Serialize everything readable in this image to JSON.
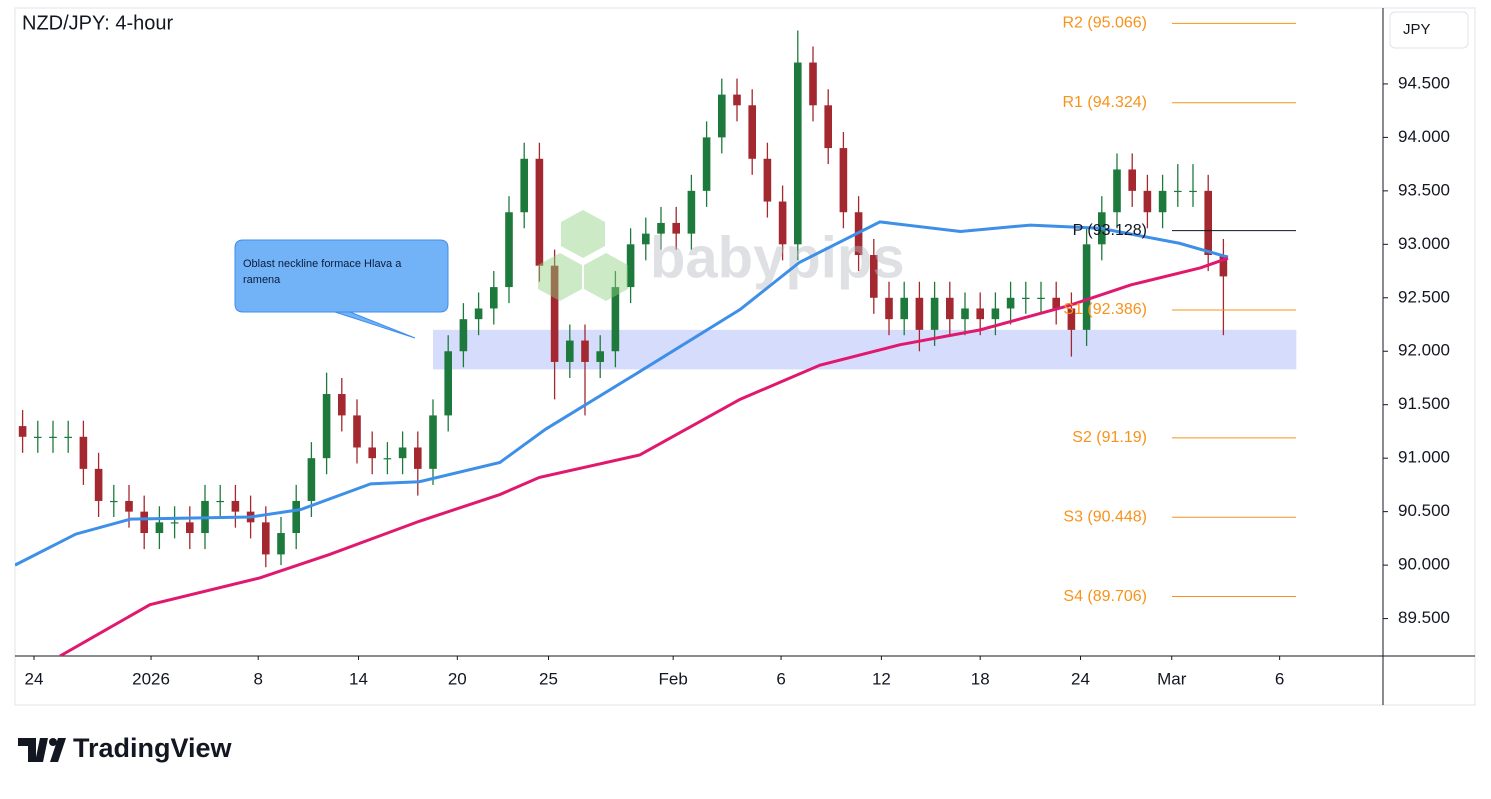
{
  "chart_data": {
    "type": "candlestick",
    "title": "NZD/JPY: 4-hour",
    "y_axis_label": "JPY",
    "watermark": "babypips",
    "footer": "TradingView",
    "annotation": "Oblast neckline formace Hlava a ramena",
    "xlim": [
      0,
      90
    ],
    "ylim": [
      89.15,
      95.21
    ],
    "xticks": [
      {
        "value": 1.25,
        "label": "24"
      },
      {
        "value": 8.95,
        "label": "2026"
      },
      {
        "value": 16.0,
        "label": "8"
      },
      {
        "value": 22.6,
        "label": "14"
      },
      {
        "value": 29.1,
        "label": "20"
      },
      {
        "value": 35.1,
        "label": "25"
      },
      {
        "value": 43.3,
        "label": "Feb"
      },
      {
        "value": 50.4,
        "label": "6"
      },
      {
        "value": 57.0,
        "label": "12"
      },
      {
        "value": 63.5,
        "label": "18"
      },
      {
        "value": 70.1,
        "label": "24"
      },
      {
        "value": 76.1,
        "label": "Mar"
      },
      {
        "value": 83.2,
        "label": "6"
      }
    ],
    "yticks": [
      {
        "value": 89.5,
        "label": "89.500"
      },
      {
        "value": 90,
        "label": "90.000"
      },
      {
        "value": 90.5,
        "label": "90.500"
      },
      {
        "value": 91,
        "label": "91.000"
      },
      {
        "value": 91.5,
        "label": "91.500"
      },
      {
        "value": 92,
        "label": "92.000"
      },
      {
        "value": 92.5,
        "label": "92.500"
      },
      {
        "value": 93,
        "label": "93.000"
      },
      {
        "value": 93.5,
        "label": "93.500"
      },
      {
        "value": 94,
        "label": "94.000"
      },
      {
        "value": 94.5,
        "label": "94.500"
      }
    ],
    "up_color": "#1e7a3c",
    "down_color": "#a3282f",
    "open": [
      91.3,
      91.2,
      91.2,
      91.2,
      91.2,
      90.9,
      90.6,
      90.6,
      90.5,
      90.3,
      90.4,
      90.4,
      90.3,
      90.6,
      90.6,
      90.5,
      90.4,
      90.1,
      90.3,
      90.6,
      91.0,
      91.6,
      91.4,
      91.1,
      91.0,
      91.0,
      91.1,
      90.9,
      91.4,
      92.0,
      92.3,
      92.4,
      92.6,
      93.3,
      93.8,
      92.8,
      91.9,
      92.1,
      91.9,
      92.0,
      92.6,
      93.0,
      93.1,
      93.2,
      93.1,
      93.5,
      94.0,
      94.4,
      94.3,
      93.8,
      93.4,
      93.0,
      94.7,
      94.3,
      93.9,
      93.3,
      92.9,
      92.5,
      92.3,
      92.5,
      92.2,
      92.5,
      92.3,
      92.4,
      92.3,
      92.4,
      92.5,
      92.5,
      92.5,
      92.4,
      92.2,
      93.0,
      93.3,
      93.7,
      93.5,
      93.3,
      93.5,
      93.5,
      93.5,
      92.9
    ],
    "high": [
      91.45,
      91.35,
      91.35,
      91.35,
      91.35,
      91.05,
      90.75,
      90.75,
      90.65,
      90.55,
      90.55,
      90.55,
      90.75,
      90.75,
      90.75,
      90.65,
      90.55,
      90.45,
      90.75,
      91.15,
      91.8,
      91.75,
      91.55,
      91.25,
      91.15,
      91.25,
      91.25,
      91.55,
      92.15,
      92.45,
      92.55,
      92.75,
      93.45,
      93.95,
      93.95,
      92.95,
      92.25,
      92.25,
      92.15,
      92.75,
      93.15,
      93.25,
      93.35,
      93.35,
      93.65,
      94.15,
      94.55,
      94.55,
      94.45,
      93.95,
      93.55,
      95.0,
      94.85,
      94.45,
      94.05,
      93.45,
      93.05,
      92.65,
      92.65,
      92.65,
      92.65,
      92.65,
      92.55,
      92.55,
      92.55,
      92.65,
      92.65,
      92.65,
      92.65,
      92.55,
      93.15,
      93.45,
      93.85,
      93.85,
      93.65,
      93.65,
      93.75,
      93.75,
      93.65,
      93.05
    ],
    "low": [
      91.05,
      91.05,
      91.05,
      91.05,
      90.75,
      90.45,
      90.45,
      90.35,
      90.15,
      90.15,
      90.25,
      90.15,
      90.15,
      90.45,
      90.35,
      90.25,
      89.98,
      90.0,
      90.15,
      90.45,
      90.85,
      91.25,
      90.95,
      90.85,
      90.85,
      90.85,
      90.65,
      90.75,
      91.25,
      91.85,
      92.15,
      92.25,
      92.45,
      93.15,
      92.65,
      91.55,
      91.75,
      91.4,
      91.75,
      91.85,
      92.45,
      92.85,
      92.95,
      92.95,
      92.95,
      93.35,
      93.85,
      94.15,
      93.65,
      93.25,
      92.85,
      92.85,
      94.15,
      93.75,
      93.15,
      92.75,
      92.35,
      92.15,
      92.15,
      92.0,
      92.05,
      92.15,
      92.15,
      92.15,
      92.15,
      92.25,
      92.35,
      92.35,
      92.25,
      91.95,
      92.05,
      92.85,
      93.15,
      93.35,
      93.15,
      93.15,
      93.35,
      93.35,
      92.75,
      92.15
    ],
    "close": [
      91.2,
      91.2,
      91.2,
      91.2,
      90.9,
      90.6,
      90.6,
      90.5,
      90.3,
      90.4,
      90.4,
      90.3,
      90.6,
      90.6,
      90.5,
      90.4,
      90.1,
      90.3,
      90.6,
      91.0,
      91.6,
      91.4,
      91.1,
      91.0,
      91.0,
      91.1,
      90.9,
      91.4,
      92.0,
      92.3,
      92.4,
      92.6,
      93.3,
      93.8,
      92.8,
      91.9,
      92.1,
      91.9,
      92.0,
      92.6,
      93.0,
      93.1,
      93.2,
      93.1,
      93.5,
      94.0,
      94.4,
      94.3,
      93.8,
      93.4,
      93.0,
      94.7,
      94.3,
      93.9,
      93.3,
      92.9,
      92.5,
      92.3,
      92.5,
      92.2,
      92.5,
      92.3,
      92.4,
      92.3,
      92.4,
      92.5,
      92.5,
      92.5,
      92.4,
      92.2,
      93.0,
      93.3,
      93.7,
      93.5,
      93.3,
      93.5,
      93.5,
      93.5,
      92.9,
      92.7
    ],
    "lines": [
      {
        "color": "#3d8fe8",
        "x": [
          0,
          4,
          7.6,
          15.5,
          18.8,
          23.4,
          26.6,
          31.9,
          34.9,
          41.1,
          47.7,
          51.6,
          56.9,
          62.2,
          66.8,
          71.4,
          76.6,
          79.8
        ],
        "values": [
          90.0,
          90.29,
          90.43,
          90.45,
          90.52,
          90.76,
          90.78,
          90.96,
          91.27,
          91.81,
          92.39,
          92.83,
          93.21,
          93.12,
          93.18,
          93.15,
          93.01,
          92.88
        ]
      },
      {
        "color": "#e0196e",
        "x": [
          2.96,
          8.88,
          16.1,
          20.7,
          26.6,
          31.9,
          34.5,
          41.1,
          47.7,
          52.96,
          58.2,
          63.5,
          69.4,
          73.4,
          78.0,
          79.8
        ],
        "values": [
          89.15,
          89.63,
          89.88,
          90.1,
          90.41,
          90.66,
          90.82,
          91.03,
          91.55,
          91.87,
          92.06,
          92.2,
          92.43,
          92.62,
          92.78,
          92.87
        ]
      }
    ],
    "zone": {
      "color": "#d6dcfb",
      "x": [
        27.5,
        84.3
      ],
      "values": [
        91.83,
        92.2
      ]
    },
    "pivots": [
      {
        "label": "R2 (95.066)",
        "value": 95.066,
        "color": "#f7931a"
      },
      {
        "label": "R1 (94.324)",
        "value": 94.324,
        "color": "#f7931a"
      },
      {
        "label": "P (93.128)",
        "value": 93.128,
        "color": "#131722"
      },
      {
        "label": "S1 (92.386)",
        "value": 92.386,
        "color": "#f7931a"
      },
      {
        "label": "S2 (91.19)",
        "value": 91.19,
        "color": "#f7931a"
      },
      {
        "label": "S3 (90.448)",
        "value": 90.448,
        "color": "#f7931a"
      },
      {
        "label": "S4 (89.706)",
        "value": 89.706,
        "color": "#f7931a"
      }
    ]
  }
}
